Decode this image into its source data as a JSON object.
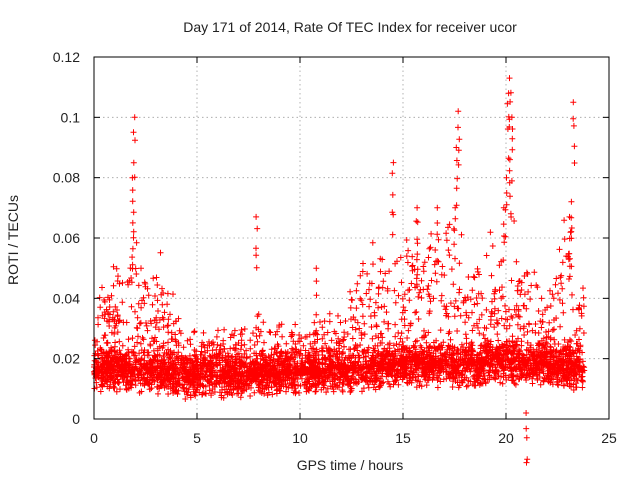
{
  "chart_data": {
    "type": "scatter",
    "title": "Day 171 of 2014, Rate Of TEC Index for receiver ucor",
    "xlabel": "GPS time / hours",
    "ylabel": "ROTI / TECUs",
    "xlim": [
      0,
      25
    ],
    "ylim": [
      0,
      0.12
    ],
    "xticks": [
      0,
      5,
      10,
      15,
      20,
      25
    ],
    "xtick_labels": [
      "0",
      "5",
      "10",
      "15",
      "20",
      "25"
    ],
    "yticks": [
      0,
      0.02,
      0.04,
      0.06,
      0.08,
      0.1,
      0.12
    ],
    "ytick_labels": [
      "0",
      "0.02",
      "0.04",
      "0.06",
      "0.08",
      "0.1",
      "0.12"
    ],
    "grid": true,
    "marker": "+",
    "color": "#ff0000",
    "series": [
      {
        "name": "ROTI",
        "x_range": [
          0,
          23.8
        ],
        "baseline_level": [
          {
            "x": 0,
            "y": 0.016
          },
          {
            "x": 2,
            "y": 0.016
          },
          {
            "x": 5,
            "y": 0.014
          },
          {
            "x": 8,
            "y": 0.015
          },
          {
            "x": 12,
            "y": 0.016
          },
          {
            "x": 15,
            "y": 0.018
          },
          {
            "x": 18,
            "y": 0.018
          },
          {
            "x": 20,
            "y": 0.019
          },
          {
            "x": 23.8,
            "y": 0.017
          }
        ],
        "baseline_min": 0.003,
        "envelope": [
          {
            "x": 0,
            "y": 0.04
          },
          {
            "x": 1,
            "y": 0.055
          },
          {
            "x": 2,
            "y": 0.062
          },
          {
            "x": 3,
            "y": 0.06
          },
          {
            "x": 4,
            "y": 0.04
          },
          {
            "x": 5,
            "y": 0.03
          },
          {
            "x": 6,
            "y": 0.03
          },
          {
            "x": 7,
            "y": 0.03
          },
          {
            "x": 8,
            "y": 0.035
          },
          {
            "x": 9,
            "y": 0.033
          },
          {
            "x": 10,
            "y": 0.032
          },
          {
            "x": 11,
            "y": 0.035
          },
          {
            "x": 12,
            "y": 0.036
          },
          {
            "x": 13,
            "y": 0.06
          },
          {
            "x": 14,
            "y": 0.06
          },
          {
            "x": 15,
            "y": 0.068
          },
          {
            "x": 16,
            "y": 0.07
          },
          {
            "x": 17,
            "y": 0.07
          },
          {
            "x": 18,
            "y": 0.062
          },
          {
            "x": 19,
            "y": 0.06
          },
          {
            "x": 20,
            "y": 0.07
          },
          {
            "x": 21,
            "y": 0.06
          },
          {
            "x": 22,
            "y": 0.048
          },
          {
            "x": 23,
            "y": 0.07
          },
          {
            "x": 23.8,
            "y": 0.055
          }
        ],
        "spikes": [
          {
            "x": 1.95,
            "y": 0.1
          },
          {
            "x": 1.9,
            "y": 0.08
          },
          {
            "x": 1.9,
            "y": 0.065
          },
          {
            "x": 7.9,
            "y": 0.067
          },
          {
            "x": 10.8,
            "y": 0.05
          },
          {
            "x": 14.5,
            "y": 0.085
          },
          {
            "x": 17.7,
            "y": 0.102
          },
          {
            "x": 17.6,
            "y": 0.09
          },
          {
            "x": 17.5,
            "y": 0.07
          },
          {
            "x": 20.2,
            "y": 0.113
          },
          {
            "x": 20.1,
            "y": 0.108
          },
          {
            "x": 20.3,
            "y": 0.1
          },
          {
            "x": 20.0,
            "y": 0.08
          },
          {
            "x": 20.2,
            "y": 0.086
          },
          {
            "x": 19.9,
            "y": 0.07
          },
          {
            "x": 23.3,
            "y": 0.105
          },
          {
            "x": 23.2,
            "y": 0.072
          },
          {
            "x": 23.1,
            "y": 0.067
          },
          {
            "x": 21.0,
            "y": 0.002
          },
          {
            "x": 15.7,
            "y": 0.07
          },
          {
            "x": 16.7,
            "y": 0.07
          }
        ]
      }
    ]
  }
}
